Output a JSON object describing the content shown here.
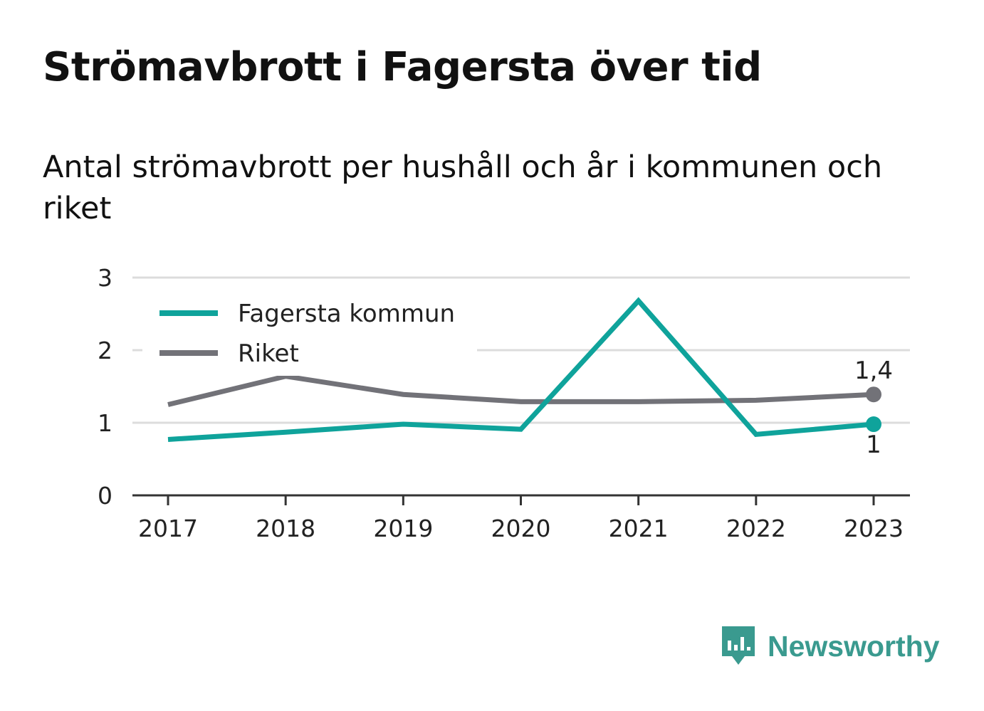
{
  "title": "Strömavbrott i Fagersta över tid",
  "subtitle": "Antal strömavbrott per hushåll och år i kommunen och riket",
  "brand": {
    "name": "Newsworthy",
    "color": "#3a9a8f",
    "icon": "chart-speech-bubble-icon"
  },
  "chart_data": {
    "type": "line",
    "categories": [
      "2017",
      "2018",
      "2019",
      "2020",
      "2021",
      "2022",
      "2023"
    ],
    "ylim": [
      0,
      3
    ],
    "yticks": [
      "0",
      "1",
      "2",
      "3"
    ],
    "grid": true,
    "legend_position": "top-left",
    "series": [
      {
        "name": "Fagersta kommun",
        "color": "#0fa39b",
        "values": [
          0.77,
          0.87,
          0.98,
          0.91,
          2.68,
          0.84,
          0.98
        ],
        "end_label": "1",
        "end_label_position": "below"
      },
      {
        "name": "Riket",
        "color": "#727278",
        "values": [
          1.25,
          1.64,
          1.39,
          1.29,
          1.29,
          1.31,
          1.39
        ],
        "end_label": "1,4",
        "end_label_position": "above"
      }
    ]
  }
}
